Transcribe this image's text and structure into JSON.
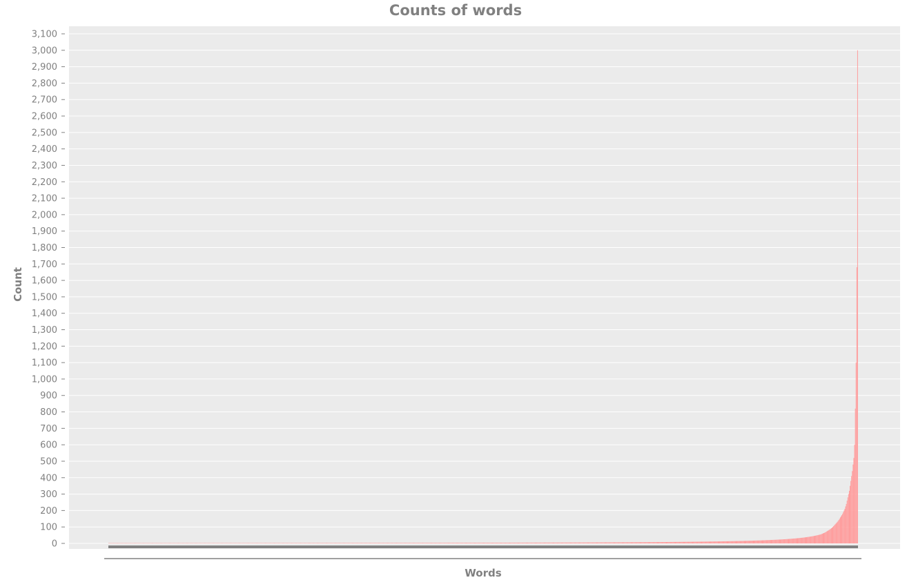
{
  "chart_data": {
    "type": "bar",
    "title": "Counts of words",
    "xlabel": "Words",
    "ylabel": "Count",
    "ylim": [
      0,
      3100
    ],
    "ytick_step": 100,
    "grid": true,
    "legend": "none",
    "sort_order": "ascending",
    "n_words": 1000,
    "colors": {
      "bar": "#ff9a9a",
      "plot_background": "#ebebeb",
      "grid": "#ffffff",
      "text": "#808080",
      "axis_line": "#808080"
    },
    "series": [
      {
        "values_tail_top_words": [
          3000,
          1680,
          1100,
          820,
          600,
          520,
          480,
          440,
          410,
          380,
          350,
          320,
          300,
          280,
          260,
          240,
          225,
          210,
          200,
          190,
          180,
          172,
          165,
          158,
          150,
          143,
          137,
          131,
          125,
          120,
          115,
          110,
          105,
          100,
          96,
          92,
          88,
          85,
          82,
          79,
          76,
          73,
          70,
          67,
          65,
          63,
          61,
          59,
          57,
          55
        ],
        "min_count": 1
      }
    ]
  }
}
